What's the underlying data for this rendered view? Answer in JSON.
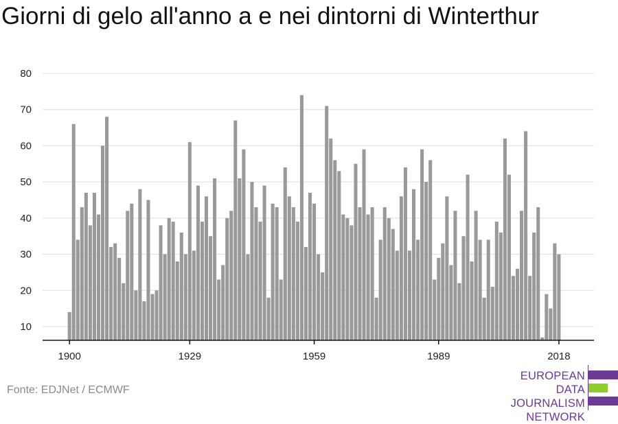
{
  "title": "Giorni di gelo all'anno a e nei dintorni di Winterthur",
  "source": "Fonte: EDJNet / ECMWF",
  "logo": {
    "lines": [
      "EUROPEAN",
      "DATA JOURNALISM",
      "NETWORK"
    ],
    "colors": {
      "purple": "#6b3a95",
      "green": "#8fce2a"
    }
  },
  "colors": {
    "bar": "#999999",
    "grid": "#dddddd",
    "axis": "#111111"
  },
  "chart_data": {
    "type": "bar",
    "title": "Giorni di gelo all'anno a e nei dintorni di Winterthur",
    "xlabel": "",
    "ylabel": "",
    "ylim": [
      6,
      80
    ],
    "yticks": [
      10,
      20,
      30,
      40,
      50,
      60,
      70,
      80
    ],
    "xticks": [
      1900,
      1929,
      1959,
      1989,
      2018
    ],
    "grid": true,
    "x_start": 1900,
    "x_end": 2018,
    "values": [
      14,
      66,
      34,
      43,
      47,
      38,
      47,
      41,
      60,
      68,
      32,
      33,
      29,
      22,
      42,
      44,
      20,
      48,
      17,
      45,
      19,
      20,
      38,
      30,
      40,
      39,
      28,
      36,
      30,
      61,
      31,
      49,
      39,
      46,
      35,
      51,
      23,
      27,
      40,
      42,
      67,
      51,
      59,
      30,
      50,
      43,
      39,
      49,
      18,
      44,
      43,
      23,
      54,
      46,
      43,
      39,
      74,
      32,
      47,
      44,
      30,
      25,
      71,
      62,
      56,
      53,
      41,
      40,
      38,
      55,
      43,
      59,
      41,
      43,
      18,
      34,
      43,
      40,
      37,
      31,
      46,
      54,
      31,
      48,
      34,
      59,
      50,
      56,
      23,
      29,
      33,
      46,
      27,
      42,
      22,
      35,
      52,
      28,
      42,
      34,
      18,
      34,
      21,
      39,
      36,
      62,
      52,
      24,
      26,
      42,
      64,
      24,
      36,
      43,
      7,
      19,
      15,
      33,
      30
    ]
  }
}
